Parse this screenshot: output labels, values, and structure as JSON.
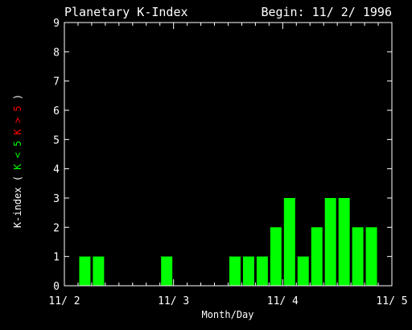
{
  "chart_data": {
    "type": "bar",
    "title": "Planetary K-Index",
    "begin_label": "Begin: 11/ 2/ 1996",
    "xlabel": "Month/Day",
    "ylabel_parts": [
      {
        "text": "K-index",
        "color": "#ffffff"
      },
      {
        "text": "(",
        "color": "#ffffff"
      },
      {
        "text": "K < 5",
        "color": "#00ff00"
      },
      {
        "text": "K > 5",
        "color": "#ff0000"
      },
      {
        "text": ")",
        "color": "#ffffff"
      }
    ],
    "x_ticks": [
      "11/ 2",
      "11/ 3",
      "11/ 4",
      "11/ 5"
    ],
    "xlim": [
      0,
      24
    ],
    "ylim": [
      0,
      9
    ],
    "y_ticks": [
      0,
      1,
      2,
      3,
      4,
      5,
      6,
      7,
      8,
      9
    ],
    "interval_hours": 3,
    "bars": [
      {
        "index": 1,
        "value": 1
      },
      {
        "index": 2,
        "value": 1
      },
      {
        "index": 7,
        "value": 1
      },
      {
        "index": 12,
        "value": 1
      },
      {
        "index": 13,
        "value": 1
      },
      {
        "index": 14,
        "value": 1
      },
      {
        "index": 15,
        "value": 2
      },
      {
        "index": 16,
        "value": 3
      },
      {
        "index": 17,
        "value": 1
      },
      {
        "index": 18,
        "value": 2
      },
      {
        "index": 19,
        "value": 3
      },
      {
        "index": 20,
        "value": 3
      },
      {
        "index": 21,
        "value": 2
      },
      {
        "index": 22,
        "value": 2
      }
    ],
    "colors": {
      "background": "#000000",
      "axes": "#ffffff",
      "text": "#ffffff",
      "bar_low": "#00ff00",
      "bar_high": "#ff0000"
    }
  }
}
